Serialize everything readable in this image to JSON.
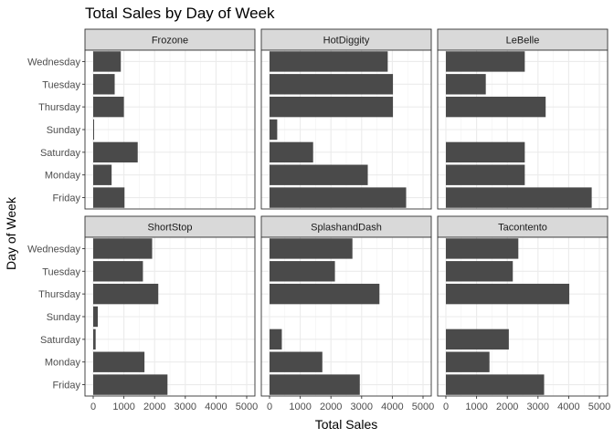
{
  "chart_data": {
    "type": "bar",
    "orientation": "horizontal",
    "faceted": true,
    "title": "Total Sales by Day of Week",
    "xlabel": "Total Sales",
    "ylabel": "Day of Week",
    "xlim": [
      0,
      5000
    ],
    "x_ticks": [
      0,
      1000,
      2000,
      3000,
      4000,
      5000
    ],
    "x_tick_labels": [
      "0",
      "1000",
      "2000",
      "3000",
      "4000",
      "5000"
    ],
    "categories": [
      "Wednesday",
      "Tuesday",
      "Thursday",
      "Sunday",
      "Saturday",
      "Monday",
      "Friday"
    ],
    "grid": true,
    "bar_color": "#4a4a4a",
    "panels": [
      {
        "name": "Frozone",
        "values": [
          900,
          700,
          1000,
          30,
          1450,
          600,
          1020
        ]
      },
      {
        "name": "HotDiggity",
        "values": [
          3850,
          4020,
          4020,
          250,
          1420,
          3200,
          4450
        ]
      },
      {
        "name": "LeBelle",
        "values": [
          2570,
          1300,
          3250,
          0,
          2570,
          2570,
          4750
        ]
      },
      {
        "name": "ShortStop",
        "values": [
          1920,
          1620,
          2120,
          150,
          80,
          1670,
          2420
        ]
      },
      {
        "name": "SplashandDash",
        "values": [
          2700,
          2130,
          3580,
          0,
          400,
          1720,
          2940
        ]
      },
      {
        "name": "Tacontento",
        "values": [
          2360,
          2180,
          4020,
          0,
          2050,
          1420,
          3200
        ]
      }
    ]
  }
}
